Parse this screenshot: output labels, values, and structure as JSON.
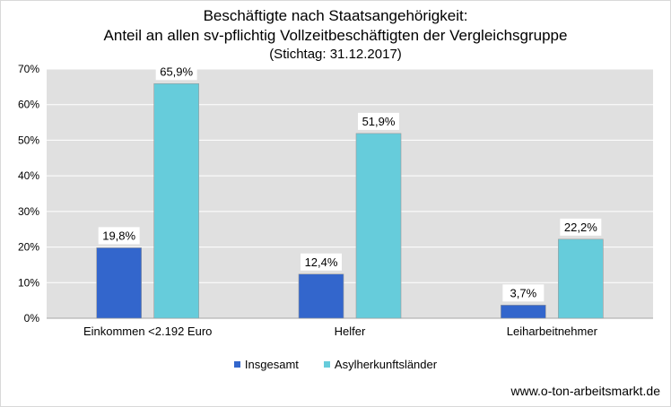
{
  "chart_data": {
    "type": "bar",
    "title": "Beschäftigte nach Staatsangehörigkeit:",
    "subtitle": "Anteil an allen sv-pflichtig Vollzeitbeschäftigten der Vergleichsgruppe",
    "subtitle2": "(Stichtag: 31.12.2017)",
    "categories": [
      "Einkommen <2.192 Euro",
      "Helfer",
      "Leiharbeitnehmer"
    ],
    "series": [
      {
        "name": "Insgesamt",
        "color": "#3366cc",
        "values": [
          19.8,
          12.4,
          3.7
        ],
        "labels": [
          "19,8%",
          "12,4%",
          "3,7%"
        ]
      },
      {
        "name": "Asylherkunftsländer",
        "color": "#66ccdb",
        "values": [
          65.9,
          51.9,
          22.2
        ],
        "labels": [
          "65,9%",
          "51,9%",
          "22,2%"
        ]
      }
    ],
    "ylim": [
      0,
      70
    ],
    "yticks": [
      0,
      10,
      20,
      30,
      40,
      50,
      60,
      70
    ],
    "ytick_labels": [
      "0%",
      "10%",
      "20%",
      "30%",
      "40%",
      "50%",
      "60%",
      "70%"
    ],
    "grid": true,
    "plot_background": "#e0e0e0",
    "legend_position": "bottom"
  },
  "source": "www.o-ton-arbeitsmarkt.de"
}
